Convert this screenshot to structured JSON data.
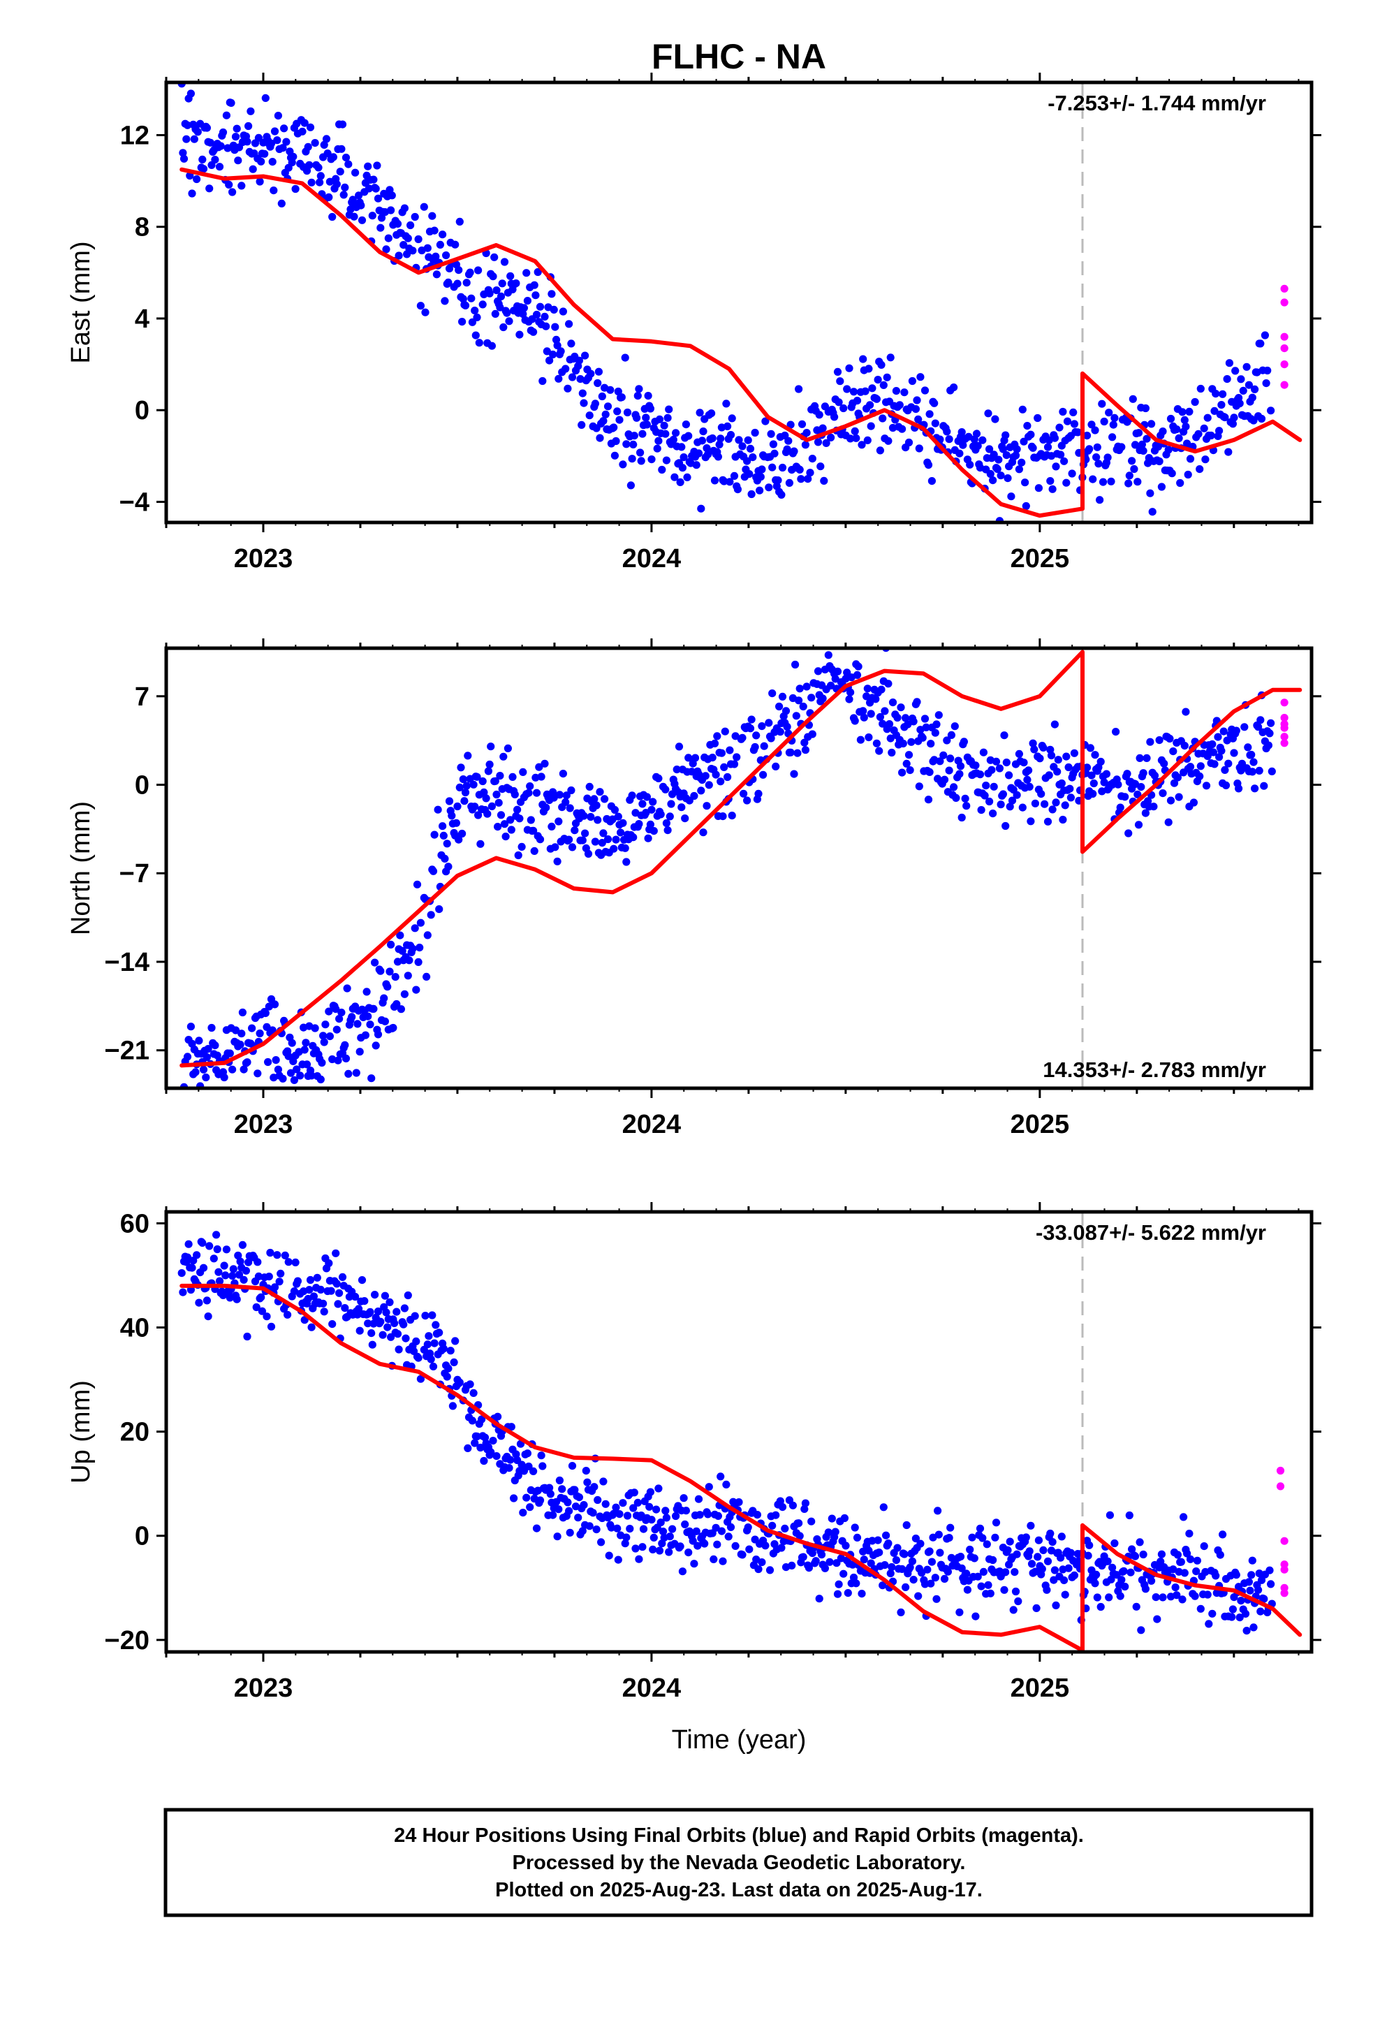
{
  "title": "FLHC - NA",
  "caption": {
    "line1": "24 Hour Positions Using Final Orbits (blue) and Rapid Orbits (magenta).",
    "line2": "Processed by the Nevada Geodetic Laboratory.",
    "line3": "Plotted on 2025-Aug-23. Last data on 2025-Aug-17."
  },
  "colors": {
    "final_orbits": "#0000ff",
    "rapid_orbits": "#ff00ff",
    "model": "#ff0000",
    "event_line": "#bbbbbb"
  },
  "chart_data": [
    {
      "type": "scatter",
      "ylabel": "East (mm)",
      "rate_label": "-7.253+/- 1.744 mm/yr",
      "xlim": [
        2022.75,
        2025.7
      ],
      "ylim": [
        -4.9,
        14.3
      ],
      "yticks": [
        -4,
        0,
        4,
        8,
        12
      ],
      "ytick_labels": [
        "−4",
        "0",
        "4",
        "8",
        "12"
      ],
      "xticks": [
        2023,
        2024,
        2025
      ],
      "event_line_x": 2025.11,
      "final_points_trend": {
        "x": [
          2022.79,
          2023.0,
          2023.2,
          2023.35,
          2023.5,
          2023.7,
          2023.9,
          2024.1,
          2024.3,
          2024.55,
          2024.75,
          2024.9,
          2025.05,
          2025.1,
          2025.3,
          2025.45,
          2025.6
        ],
        "y": [
          11.7,
          11.6,
          10.4,
          8.0,
          6.0,
          4.2,
          -0.6,
          -1.5,
          -2.2,
          0.5,
          -0.8,
          -2.6,
          -1.5,
          -1.5,
          -1.6,
          -0.8,
          1.9
        ]
      },
      "rapid_points": {
        "x": [
          2025.63,
          2025.63,
          2025.63,
          2025.63,
          2025.63,
          2025.63
        ],
        "y": [
          5.3,
          4.7,
          3.2,
          2.7,
          2.0,
          1.1
        ]
      },
      "model_curve": {
        "x": [
          2022.79,
          2022.9,
          2023.0,
          2023.1,
          2023.2,
          2023.3,
          2023.4,
          2023.5,
          2023.6,
          2023.7,
          2023.8,
          2023.9,
          2024.0,
          2024.1,
          2024.2,
          2024.3,
          2024.4,
          2024.5,
          2024.6,
          2024.7,
          2024.8,
          2024.9,
          2025.0,
          2025.11,
          2025.11,
          2025.2,
          2025.3,
          2025.4,
          2025.5,
          2025.6,
          2025.67
        ],
        "y": [
          10.5,
          10.1,
          10.2,
          9.9,
          8.5,
          6.9,
          6.0,
          6.6,
          7.2,
          6.5,
          4.6,
          3.1,
          3.0,
          2.8,
          1.8,
          -0.3,
          -1.3,
          -0.7,
          0.0,
          -0.8,
          -2.6,
          -4.1,
          -4.6,
          -4.3,
          1.6,
          0.2,
          -1.3,
          -1.8,
          -1.3,
          -0.5,
          -1.3
        ]
      }
    },
    {
      "type": "scatter",
      "ylabel": "North (mm)",
      "rate_label": "14.353+/- 2.783 mm/yr",
      "xlim": [
        2022.75,
        2025.7
      ],
      "ylim": [
        -24.0,
        10.8
      ],
      "yticks": [
        -21,
        -14,
        -7,
        0,
        7
      ],
      "ytick_labels": [
        "−21",
        "−14",
        "−7",
        "0",
        "7"
      ],
      "xticks": [
        2023,
        2024,
        2025
      ],
      "event_line_x": 2025.11,
      "final_points_trend": {
        "x": [
          2022.79,
          2023.0,
          2023.2,
          2023.3,
          2023.4,
          2023.5,
          2023.6,
          2023.8,
          2023.9,
          2024.0,
          2024.1,
          2024.3,
          2024.5,
          2024.6,
          2024.75,
          2024.9,
          2025.0,
          2025.2,
          2025.4,
          2025.6
        ],
        "y": [
          -22.5,
          -21.0,
          -20.5,
          -18.5,
          -12.0,
          -2.0,
          -0.8,
          -2.8,
          -3.5,
          -2.0,
          0.0,
          3.0,
          9.0,
          5.5,
          1.2,
          0.2,
          1.0,
          0.0,
          2.0,
          3.5
        ]
      },
      "rapid_points": {
        "x": [
          2025.63,
          2025.63,
          2025.63,
          2025.63,
          2025.63,
          2025.63
        ],
        "y": [
          6.5,
          5.3,
          4.8,
          4.5,
          3.8,
          3.3
        ]
      },
      "model_curve": {
        "x": [
          2022.79,
          2022.9,
          2023.0,
          2023.1,
          2023.2,
          2023.3,
          2023.4,
          2023.5,
          2023.6,
          2023.7,
          2023.8,
          2023.9,
          2024.0,
          2024.1,
          2024.2,
          2024.3,
          2024.4,
          2024.5,
          2024.6,
          2024.7,
          2024.8,
          2024.9,
          2025.0,
          2025.11,
          2025.11,
          2025.2,
          2025.3,
          2025.4,
          2025.5,
          2025.6,
          2025.67
        ],
        "y": [
          -22.2,
          -22.0,
          -20.5,
          -18.0,
          -15.5,
          -12.8,
          -10.0,
          -7.2,
          -5.8,
          -6.7,
          -8.2,
          -8.5,
          -7.0,
          -4.0,
          -1.0,
          2.0,
          5.0,
          7.8,
          9.0,
          8.8,
          7.0,
          6.0,
          7.0,
          10.5,
          -5.3,
          -2.7,
          0.0,
          3.0,
          5.8,
          7.5,
          7.5
        ]
      }
    },
    {
      "type": "scatter",
      "ylabel": "Up (mm)",
      "rate_label": "-33.087+/- 5.622 mm/yr",
      "xlim": [
        2022.75,
        2025.7
      ],
      "ylim": [
        -22.3,
        62.2
      ],
      "yticks": [
        -20,
        0,
        20,
        40,
        60
      ],
      "ytick_labels": [
        "−20",
        "0",
        "20",
        "40",
        "60"
      ],
      "xticks": [
        2023,
        2024,
        2025
      ],
      "xlabel": "Time (year)",
      "event_line_x": 2025.11,
      "final_points_trend": {
        "x": [
          2022.79,
          2022.95,
          2023.1,
          2023.3,
          2023.45,
          2023.55,
          2023.7,
          2023.85,
          2024.0,
          2024.2,
          2024.4,
          2024.6,
          2024.8,
          2025.0,
          2025.2,
          2025.4,
          2025.6
        ],
        "y": [
          50.0,
          49.0,
          48.0,
          43.0,
          35.0,
          20.0,
          10.0,
          4.0,
          2.0,
          1.0,
          -1.5,
          -4.5,
          -6.5,
          -5.5,
          -7.0,
          -8.0,
          -12.0
        ]
      },
      "rapid_points": {
        "x": [
          2025.62,
          2025.62,
          2025.63,
          2025.63,
          2025.63,
          2025.63,
          2025.63
        ],
        "y": [
          12.5,
          9.5,
          -1.0,
          -5.5,
          -6.5,
          -10.0,
          -11.0
        ]
      },
      "model_curve": {
        "x": [
          2022.79,
          2022.9,
          2023.0,
          2023.1,
          2023.2,
          2023.3,
          2023.4,
          2023.5,
          2023.6,
          2023.7,
          2023.8,
          2023.9,
          2024.0,
          2024.1,
          2024.2,
          2024.3,
          2024.4,
          2024.5,
          2024.6,
          2024.7,
          2024.8,
          2024.9,
          2025.0,
          2025.11,
          2025.11,
          2025.2,
          2025.3,
          2025.4,
          2025.5,
          2025.6,
          2025.67
        ],
        "y": [
          48.0,
          48.0,
          47.5,
          43.0,
          37.0,
          33.0,
          31.5,
          27.0,
          21.5,
          17.0,
          15.0,
          14.8,
          14.5,
          10.5,
          5.5,
          1.0,
          -1.5,
          -3.5,
          -8.5,
          -14.5,
          -18.5,
          -19.0,
          -17.5,
          -22.0,
          2.0,
          -3.5,
          -7.5,
          -9.5,
          -10.5,
          -14.0,
          -19.0
        ]
      }
    }
  ]
}
